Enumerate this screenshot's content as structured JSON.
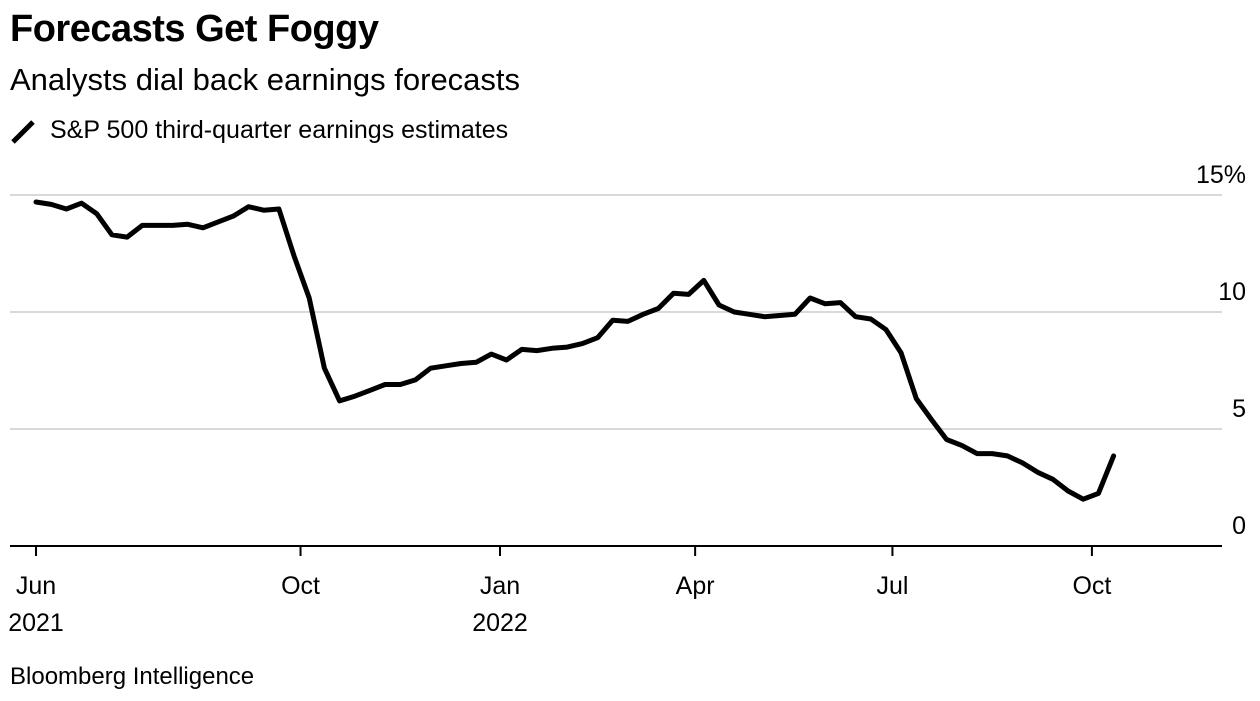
{
  "header": {
    "title": "Forecasts Get Foggy",
    "subtitle": "Analysts dial back earnings forecasts"
  },
  "footer": {
    "source": "Bloomberg Intelligence"
  },
  "colors": {
    "line": "#000000",
    "grid": "#d9d9d9",
    "axis": "#000000"
  },
  "chart_data": {
    "type": "line",
    "title": "Forecasts Get Foggy",
    "subtitle": "Analysts dial back earnings forecasts",
    "ylim": [
      0,
      15
    ],
    "y_ticks": [
      {
        "value": 15,
        "label": "15%"
      },
      {
        "value": 10,
        "label": "10"
      },
      {
        "value": 5,
        "label": "5"
      },
      {
        "value": 0,
        "label": "0"
      }
    ],
    "x_ticks": [
      {
        "date": "2021-06-01",
        "label": "Jun",
        "sublabel": "2021"
      },
      {
        "date": "2021-10-01",
        "label": "Oct",
        "sublabel": ""
      },
      {
        "date": "2022-01-01",
        "label": "Jan",
        "sublabel": "2022"
      },
      {
        "date": "2022-04-01",
        "label": "Apr",
        "sublabel": ""
      },
      {
        "date": "2022-07-01",
        "label": "Jul",
        "sublabel": ""
      },
      {
        "date": "2022-10-01",
        "label": "Oct",
        "sublabel": ""
      }
    ],
    "xlim": [
      "2021-05-20",
      "2022-11-30"
    ],
    "grid": true,
    "legend": "top-left",
    "series": [
      {
        "name": "S&P 500 third-quarter earnings estimates",
        "points": [
          [
            "2021-06-01",
            14.7
          ],
          [
            "2021-06-08",
            14.6
          ],
          [
            "2021-06-15",
            14.4
          ],
          [
            "2021-06-22",
            14.65
          ],
          [
            "2021-06-29",
            14.2
          ],
          [
            "2021-07-06",
            13.3
          ],
          [
            "2021-07-13",
            13.2
          ],
          [
            "2021-07-20",
            13.7
          ],
          [
            "2021-07-27",
            13.7
          ],
          [
            "2021-08-03",
            13.7
          ],
          [
            "2021-08-10",
            13.75
          ],
          [
            "2021-08-17",
            13.6
          ],
          [
            "2021-08-24",
            13.85
          ],
          [
            "2021-08-31",
            14.1
          ],
          [
            "2021-09-07",
            14.5
          ],
          [
            "2021-09-14",
            14.35
          ],
          [
            "2021-09-21",
            14.4
          ],
          [
            "2021-09-28",
            12.4
          ],
          [
            "2021-10-05",
            10.6
          ],
          [
            "2021-10-12",
            7.6
          ],
          [
            "2021-10-19",
            6.2
          ],
          [
            "2021-10-26",
            6.4
          ],
          [
            "2021-11-02",
            6.65
          ],
          [
            "2021-11-09",
            6.9
          ],
          [
            "2021-11-16",
            6.9
          ],
          [
            "2021-11-23",
            7.1
          ],
          [
            "2021-11-30",
            7.6
          ],
          [
            "2021-12-07",
            7.7
          ],
          [
            "2021-12-14",
            7.8
          ],
          [
            "2021-12-21",
            7.85
          ],
          [
            "2021-12-28",
            8.2
          ],
          [
            "2022-01-04",
            7.95
          ],
          [
            "2022-01-11",
            8.4
          ],
          [
            "2022-01-18",
            8.35
          ],
          [
            "2022-01-25",
            8.45
          ],
          [
            "2022-02-01",
            8.5
          ],
          [
            "2022-02-08",
            8.65
          ],
          [
            "2022-02-15",
            8.9
          ],
          [
            "2022-02-22",
            9.65
          ],
          [
            "2022-03-01",
            9.6
          ],
          [
            "2022-03-08",
            9.9
          ],
          [
            "2022-03-15",
            10.15
          ],
          [
            "2022-03-22",
            10.8
          ],
          [
            "2022-03-29",
            10.75
          ],
          [
            "2022-04-05",
            11.35
          ],
          [
            "2022-04-12",
            10.3
          ],
          [
            "2022-04-19",
            10.0
          ],
          [
            "2022-04-26",
            9.9
          ],
          [
            "2022-05-03",
            9.8
          ],
          [
            "2022-05-10",
            9.85
          ],
          [
            "2022-05-17",
            9.9
          ],
          [
            "2022-05-24",
            10.6
          ],
          [
            "2022-05-31",
            10.35
          ],
          [
            "2022-06-07",
            10.4
          ],
          [
            "2022-06-14",
            9.8
          ],
          [
            "2022-06-21",
            9.7
          ],
          [
            "2022-06-28",
            9.25
          ],
          [
            "2022-07-05",
            8.25
          ],
          [
            "2022-07-12",
            6.3
          ],
          [
            "2022-07-19",
            5.4
          ],
          [
            "2022-07-26",
            4.55
          ],
          [
            "2022-08-02",
            4.3
          ],
          [
            "2022-08-09",
            3.95
          ],
          [
            "2022-08-16",
            3.95
          ],
          [
            "2022-08-23",
            3.85
          ],
          [
            "2022-08-30",
            3.55
          ],
          [
            "2022-09-06",
            3.15
          ],
          [
            "2022-09-13",
            2.85
          ],
          [
            "2022-09-20",
            2.35
          ],
          [
            "2022-09-27",
            2.0
          ],
          [
            "2022-10-04",
            2.25
          ],
          [
            "2022-10-11",
            3.85
          ]
        ]
      }
    ]
  }
}
